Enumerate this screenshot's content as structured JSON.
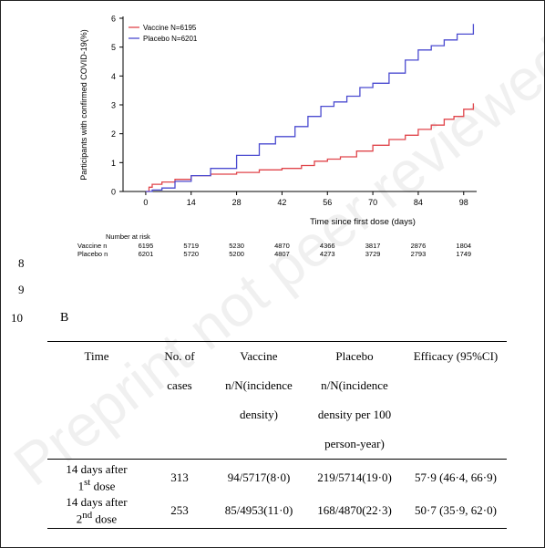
{
  "watermark": "Preprint not peer reviewed",
  "line_numbers": [
    "8",
    "9",
    "10"
  ],
  "chart_data": {
    "type": "line",
    "xlabel": "Time since first dose (days)",
    "ylabel": "Participants with confirmed COVID-19(%)",
    "xlim": [
      -7,
      102
    ],
    "ylim": [
      0,
      6
    ],
    "xticks": [
      0,
      14,
      28,
      42,
      56,
      70,
      84,
      98
    ],
    "yticks": [
      0,
      1,
      2,
      3,
      4,
      5,
      6
    ],
    "legend_position": "top-left",
    "series": [
      {
        "name": "Vaccine N=6195",
        "color": "#e0454b",
        "x": [
          0,
          1,
          2,
          5,
          9,
          14,
          20,
          28,
          35,
          42,
          48,
          52,
          56,
          60,
          65,
          70,
          75,
          80,
          84,
          88,
          92,
          95,
          98,
          101
        ],
        "y": [
          0,
          0.15,
          0.25,
          0.33,
          0.42,
          0.55,
          0.6,
          0.66,
          0.75,
          0.8,
          0.9,
          1.05,
          1.12,
          1.2,
          1.4,
          1.6,
          1.8,
          1.95,
          2.15,
          2.3,
          2.5,
          2.6,
          2.85,
          3.05
        ]
      },
      {
        "name": "Placebo N=6201",
        "color": "#4b4bd0",
        "x": [
          0,
          2,
          5,
          9,
          14,
          20,
          28,
          35,
          40,
          46,
          50,
          54,
          58,
          62,
          66,
          70,
          75,
          80,
          84,
          88,
          92,
          96,
          101
        ],
        "y": [
          0,
          0.05,
          0.12,
          0.35,
          0.55,
          0.8,
          1.25,
          1.65,
          1.9,
          2.25,
          2.6,
          2.95,
          3.1,
          3.3,
          3.6,
          3.75,
          4.1,
          4.55,
          4.9,
          5.05,
          5.25,
          5.45,
          5.8
        ]
      }
    ],
    "risk_table": {
      "title": "Number at risk",
      "rows": [
        {
          "label": "Vaccine n",
          "values": [
            "6195",
            "5719",
            "5230",
            "4870",
            "4366",
            "3817",
            "2876",
            "1804"
          ]
        },
        {
          "label": "Placebo n",
          "values": [
            "6201",
            "5720",
            "5200",
            "4807",
            "4273",
            "3729",
            "2793",
            "1749"
          ]
        }
      ]
    }
  },
  "panel_label": "B",
  "table": {
    "headers": {
      "time": "Time",
      "cases": [
        "No. of",
        "cases"
      ],
      "vaccine": [
        "Vaccine",
        "n/N(incidence",
        "density)"
      ],
      "placebo": [
        "Placebo",
        "n/N(incidence",
        "density per 100",
        "person-year)"
      ],
      "efficacy": "Efficacy (95%CI)"
    },
    "rows": [
      {
        "time_main": "14 days after",
        "time_num": "1",
        "time_sup": "st",
        "time_tail": " dose",
        "cases": "313",
        "vaccine": "94/5717(8·0)",
        "placebo": "219/5714(19·0)",
        "efficacy": "57·9 (46·4, 66·9)"
      },
      {
        "time_main": "14 days after",
        "time_num": "2",
        "time_sup": "nd",
        "time_tail": " dose",
        "cases": "253",
        "vaccine": "85/4953(11·0)",
        "placebo": "168/4870(22·3)",
        "efficacy": "50·7 (35·9, 62·0)"
      }
    ]
  }
}
